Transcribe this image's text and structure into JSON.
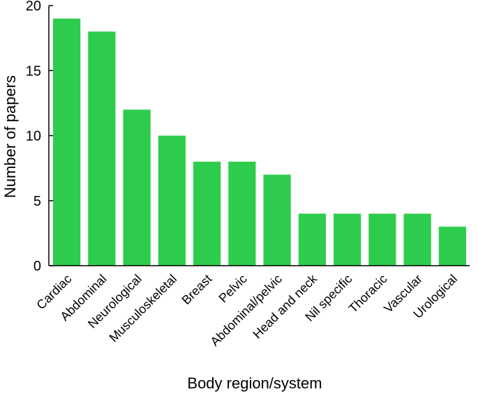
{
  "chart_data": {
    "type": "bar",
    "title": "",
    "xlabel": "Body region/system",
    "ylabel": "Number of papers",
    "categories": [
      "Cardiac",
      "Abdominal",
      "Neurological",
      "Musculoskeletal",
      "Breast",
      "Pelvic",
      "Abdominal/pelvic",
      "Head and neck",
      "Nil specific",
      "Thoracic",
      "Vascular",
      "Urological"
    ],
    "values": [
      19,
      18,
      12,
      10,
      8,
      8,
      7,
      4,
      4,
      4,
      4,
      3
    ],
    "ylim": [
      0,
      20
    ],
    "yticks": [
      "0",
      "5",
      "10",
      "15",
      "20"
    ],
    "grid": false,
    "legend": "none",
    "bar_color": "#2ecc4d"
  }
}
